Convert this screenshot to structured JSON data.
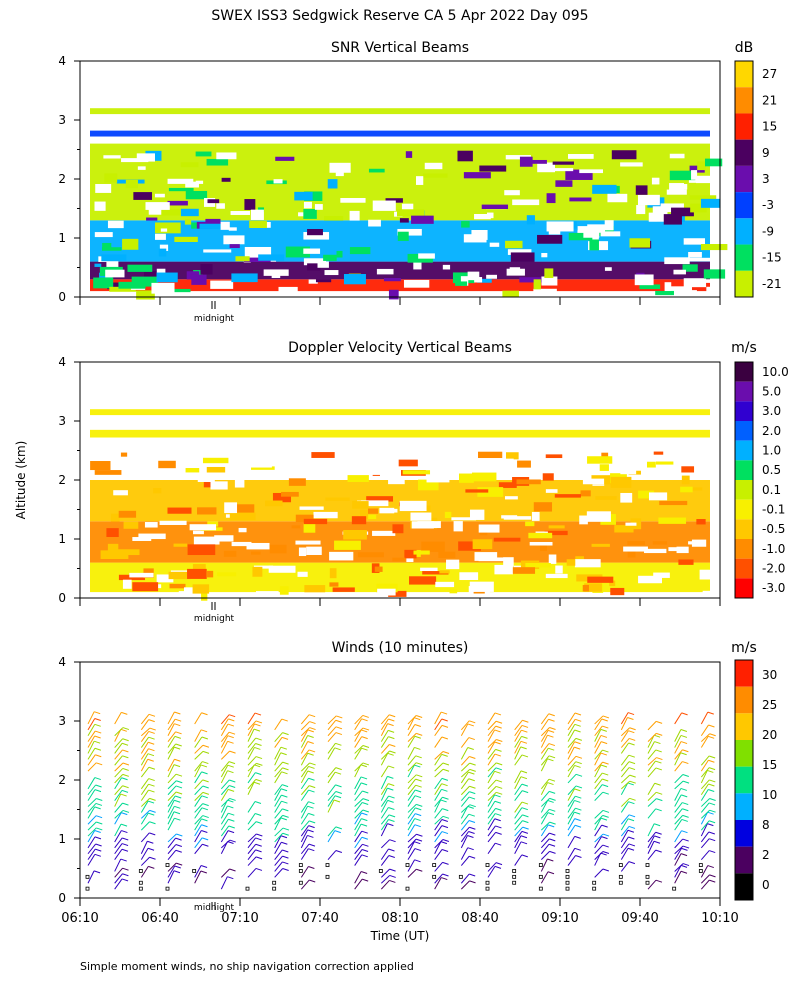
{
  "page": {
    "title": "SWEX ISS3 Sedgwick Reserve CA   5 Apr 2022 Day 095",
    "ylabel": "Altitude (km)",
    "xlabel": "Time (UT)",
    "footnote": "Simple moment winds, no ship navigation correction applied",
    "midnight_label": "midnight"
  },
  "chart_data": [
    {
      "type": "heatmap",
      "title": "SNR Vertical Beams",
      "unit": "dB",
      "xlim": [
        "06:10",
        "10:10"
      ],
      "ylim": [
        0,
        4
      ],
      "yticks": [
        "0",
        "1",
        "2",
        "3",
        "4"
      ],
      "colorbar": {
        "labels": [
          "27",
          "21",
          "15",
          "9",
          "3",
          "-3",
          "-9",
          "-15",
          "-21"
        ],
        "colors": [
          "#ffd700",
          "#ff8c00",
          "#ff2000",
          "#4b0060",
          "#6a0dad",
          "#0040ff",
          "#00b0ff",
          "#00e060",
          "#c8f000"
        ]
      },
      "layers": [
        {
          "alt_range": [
            0.1,
            0.3
          ],
          "value": "15 to 21"
        },
        {
          "alt_range": [
            0.3,
            0.6
          ],
          "value": "3 to 9"
        },
        {
          "alt_range": [
            0.6,
            1.3
          ],
          "value": "-15 to -3"
        },
        {
          "alt_range": [
            1.3,
            2.6
          ],
          "value": "-21 to -15"
        },
        {
          "alt_range": [
            2.72,
            2.82
          ],
          "value": "-3 to 3"
        },
        {
          "alt_range": [
            3.1,
            3.2
          ],
          "value": "-21 to -15"
        }
      ]
    },
    {
      "type": "heatmap",
      "title": "Doppler Velocity Vertical Beams",
      "unit": "m/s",
      "xlim": [
        "06:10",
        "10:10"
      ],
      "ylim": [
        0,
        4
      ],
      "yticks": [
        "0",
        "1",
        "2",
        "3",
        "4"
      ],
      "colorbar": {
        "labels": [
          "10.0",
          "5.0",
          "3.0",
          "2.0",
          "1.0",
          "0.5",
          "0.1",
          "-0.1",
          "-0.5",
          "-1.0",
          "-2.0",
          "-3.0"
        ],
        "colors": [
          "#3a0040",
          "#6a0dad",
          "#3000d0",
          "#0060ff",
          "#00b0ff",
          "#00e060",
          "#c8f000",
          "#f8f000",
          "#ffc800",
          "#ff8c00",
          "#ff5000",
          "#ff0000"
        ]
      },
      "layers": [
        {
          "alt_range": [
            0.1,
            0.6
          ],
          "value": "-0.1 to 0.1"
        },
        {
          "alt_range": [
            0.6,
            1.3
          ],
          "value": "-1.0 to -0.1"
        },
        {
          "alt_range": [
            1.3,
            2.0
          ],
          "value": "-0.5 to -0.1"
        },
        {
          "alt_range": [
            2.72,
            2.85
          ],
          "value": "-0.1 to 0.1"
        },
        {
          "alt_range": [
            3.1,
            3.2
          ],
          "value": "-0.1 to 0.1"
        }
      ]
    },
    {
      "type": "scatter",
      "title": "Winds (10 minutes)",
      "unit": "m/s",
      "xlim": [
        "06:10",
        "10:10"
      ],
      "ylim": [
        0,
        4
      ],
      "yticks": [
        "0",
        "1",
        "2",
        "3",
        "4"
      ],
      "xticks": [
        "06:10",
        "06:40",
        "07:10",
        "07:40",
        "08:10",
        "08:40",
        "09:10",
        "09:40",
        "10:10"
      ],
      "colorbar": {
        "labels": [
          "30",
          "25",
          "20",
          "15",
          "10",
          "8",
          "2",
          "0"
        ],
        "colors": [
          "#ff2000",
          "#ff8c00",
          "#ffc800",
          "#80e000",
          "#00e080",
          "#00b0ff",
          "#0000e0",
          "#4b0060",
          "#000000"
        ]
      },
      "profile_times": [
        "06:10",
        "06:20",
        "06:30",
        "06:40",
        "06:50",
        "07:00",
        "07:10",
        "07:20",
        "07:30",
        "07:40",
        "07:50",
        "08:00",
        "08:10",
        "08:20",
        "08:30",
        "08:40",
        "08:50",
        "09:00",
        "09:10",
        "09:20",
        "09:30",
        "09:40",
        "09:50",
        "10:00",
        "10:10"
      ],
      "speed_by_altitude": [
        {
          "alt": 0.3,
          "speed": 2
        },
        {
          "alt": 0.8,
          "speed": 6
        },
        {
          "alt": 1.3,
          "speed": 12
        },
        {
          "alt": 2.0,
          "speed": 17
        },
        {
          "alt": 2.6,
          "speed": 21
        },
        {
          "alt": 3.2,
          "speed": 26
        }
      ]
    }
  ]
}
